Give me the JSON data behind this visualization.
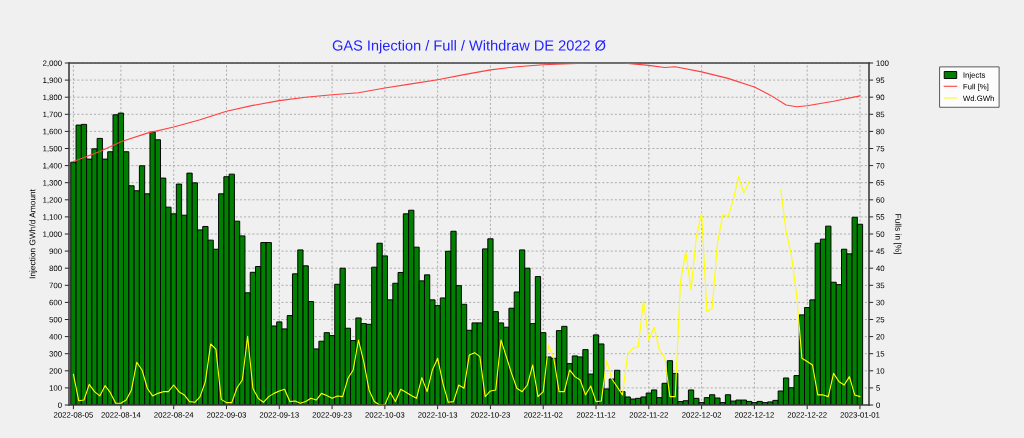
{
  "chart_data": {
    "type": "bar",
    "title": "GAS Injection / Full / Withdraw DE 2022 Ø",
    "ylabel": "Injection GWh/d Amount",
    "y2label": "Fulls in [%]",
    "x": [
      "2022-08-05",
      "2022-08-06",
      "2022-08-07",
      "2022-08-08",
      "2022-08-09",
      "2022-08-10",
      "2022-08-11",
      "2022-08-12",
      "2022-08-13",
      "2022-08-14",
      "2022-08-15",
      "2022-08-16",
      "2022-08-17",
      "2022-08-18",
      "2022-08-19",
      "2022-08-20",
      "2022-08-21",
      "2022-08-22",
      "2022-08-23",
      "2022-08-24",
      "2022-08-25",
      "2022-08-26",
      "2022-08-27",
      "2022-08-28",
      "2022-08-29",
      "2022-08-30",
      "2022-08-31",
      "2022-09-01",
      "2022-09-02",
      "2022-09-03",
      "2022-09-04",
      "2022-09-05",
      "2022-09-06",
      "2022-09-07",
      "2022-09-08",
      "2022-09-09",
      "2022-09-10",
      "2022-09-11",
      "2022-09-12",
      "2022-09-13",
      "2022-09-14",
      "2022-09-15",
      "2022-09-16",
      "2022-09-17",
      "2022-09-18",
      "2022-09-19",
      "2022-09-20",
      "2022-09-21",
      "2022-09-22",
      "2022-09-23",
      "2022-09-24",
      "2022-09-25",
      "2022-09-26",
      "2022-09-27",
      "2022-09-28",
      "2022-09-29",
      "2022-09-30",
      "2022-10-01",
      "2022-10-02",
      "2022-10-03",
      "2022-10-04",
      "2022-10-05",
      "2022-10-06",
      "2022-10-07",
      "2022-10-08",
      "2022-10-09",
      "2022-10-10",
      "2022-10-11",
      "2022-10-12",
      "2022-10-13",
      "2022-10-14",
      "2022-10-15",
      "2022-10-16",
      "2022-10-17",
      "2022-10-18",
      "2022-10-19",
      "2022-10-20",
      "2022-10-21",
      "2022-10-22",
      "2022-10-23",
      "2022-10-24",
      "2022-10-25",
      "2022-10-26",
      "2022-10-27",
      "2022-10-28",
      "2022-10-29",
      "2022-10-30",
      "2022-10-31",
      "2022-11-01",
      "2022-11-02",
      "2022-11-03",
      "2022-11-04",
      "2022-11-05",
      "2022-11-06",
      "2022-11-07",
      "2022-11-08",
      "2022-11-09",
      "2022-11-10",
      "2022-11-11",
      "2022-11-12",
      "2022-11-13",
      "2022-11-14",
      "2022-11-15",
      "2022-11-16",
      "2022-11-17",
      "2022-11-18",
      "2022-11-19",
      "2022-11-20",
      "2022-11-21",
      "2022-11-22",
      "2022-11-23",
      "2022-11-24",
      "2022-11-25",
      "2022-11-26",
      "2022-11-27",
      "2022-11-28",
      "2022-11-29",
      "2022-11-30",
      "2022-12-01",
      "2022-12-02",
      "2022-12-03",
      "2022-12-04",
      "2022-12-05",
      "2022-12-06",
      "2022-12-07",
      "2022-12-08",
      "2022-12-09",
      "2022-12-10",
      "2022-12-11",
      "2022-12-12",
      "2022-12-13",
      "2022-12-14",
      "2022-12-15",
      "2022-12-16",
      "2022-12-17",
      "2022-12-18",
      "2022-12-19",
      "2022-12-20",
      "2022-12-21",
      "2022-12-22",
      "2022-12-23",
      "2022-12-24",
      "2022-12-25",
      "2022-12-26",
      "2022-12-27",
      "2022-12-28",
      "2022-12-29",
      "2022-12-30",
      "2022-12-31",
      "2023-01-01"
    ],
    "series": [
      {
        "name": "Injects",
        "color": "#008000",
        "values": [
          1420,
          1637,
          1641,
          1438,
          1498,
          1559,
          1438,
          1481,
          1697,
          1707,
          1481,
          1282,
          1253,
          1399,
          1235,
          1596,
          1551,
          1327,
          1157,
          1118,
          1292,
          1110,
          1356,
          1299,
          1024,
          1044,
          964,
          911,
          1235,
          1335,
          1350,
          1075,
          989,
          656,
          776,
          810,
          950,
          950,
          462,
          486,
          445,
          523,
          767,
          907,
          814,
          605,
          328,
          373,
          423,
          406,
          706,
          800,
          449,
          377,
          509,
          476,
          472,
          806,
          946,
          872,
          615,
          712,
          775,
          1118,
          1139,
          923,
          726,
          761,
          615,
          581,
          626,
          899,
          1016,
          698,
          589,
          437,
          480,
          480,
          913,
          972,
          546,
          480,
          455,
          566,
          661,
          907,
          800,
          476,
          751,
          423,
          281,
          273,
          435,
          460,
          242,
          287,
          281,
          324,
          181,
          410,
          357,
          94,
          152,
          203,
          78,
          47,
          35,
          39,
          47,
          70,
          88,
          43,
          127,
          259,
          185,
          20,
          25,
          88,
          39,
          14,
          43,
          60,
          41,
          14,
          60,
          23,
          29,
          29,
          21,
          14,
          21,
          14,
          18,
          27,
          82,
          158,
          101,
          172,
          527,
          570,
          615,
          946,
          970,
          1046,
          718,
          704,
          911,
          884,
          1098,
          1057
        ]
      },
      {
        "name": "Full [%]",
        "type": "line",
        "axis": "y2",
        "color": "#ff4040",
        "x": [
          "2022-08-05",
          "2022-08-10",
          "2022-08-14",
          "2022-08-19",
          "2022-08-24",
          "2022-08-29",
          "2022-09-03",
          "2022-09-08",
          "2022-09-13",
          "2022-09-18",
          "2022-09-23",
          "2022-09-28",
          "2022-10-03",
          "2022-10-08",
          "2022-10-13",
          "2022-10-18",
          "2022-10-23",
          "2022-10-28",
          "2022-11-02",
          "2022-11-07",
          "2022-11-12",
          "2022-11-17",
          "2022-11-22",
          "2022-11-25",
          "2022-11-27",
          "2022-12-02",
          "2022-12-07",
          "2022-12-12",
          "2022-12-15",
          "2022-12-18",
          "2022-12-20",
          "2022-12-22",
          "2022-12-27",
          "2023-01-01"
        ],
        "values": [
          71.2,
          74.1,
          77.0,
          79.5,
          81.3,
          83.4,
          85.9,
          87.6,
          89.0,
          90.0,
          90.7,
          91.3,
          92.7,
          93.9,
          95.1,
          96.6,
          98.0,
          98.9,
          99.5,
          99.8,
          100,
          100,
          99.3,
          98.7,
          98.9,
          97.4,
          95.5,
          93.0,
          90.6,
          87.7,
          87.2,
          87.5,
          88.8,
          90.4
        ]
      },
      {
        "name": "Wd.GWh",
        "type": "line",
        "color": "#ffff00",
        "values": [
          180,
          25,
          29,
          121,
          78,
          53,
          113,
          72,
          10,
          10,
          29,
          88,
          250,
          205,
          98,
          53,
          68,
          78,
          78,
          117,
          78,
          59,
          20,
          16,
          49,
          137,
          357,
          326,
          33,
          14,
          14,
          101,
          146,
          402,
          98,
          39,
          16,
          49,
          68,
          82,
          92,
          20,
          23,
          10,
          20,
          39,
          29,
          68,
          55,
          39,
          53,
          49,
          156,
          205,
          380,
          254,
          88,
          20,
          0,
          0,
          74,
          20,
          92,
          74,
          55,
          39,
          160,
          78,
          205,
          273,
          127,
          16,
          20,
          117,
          98,
          293,
          306,
          283,
          49,
          82,
          88,
          380,
          283,
          185,
          98,
          78,
          117,
          234,
          49,
          78,
          351,
          273,
          78,
          78,
          205,
          166,
          146,
          59,
          111,
          20,
          23,
          259,
          152,
          107,
          59,
          297,
          332,
          341,
          611,
          380,
          455,
          322,
          278,
          49,
          49,
          722,
          897,
          673,
          985,
          1122,
          546,
          566,
          946,
          1112,
          1102,
          1200,
          1336,
          1239,
          1307,
          null,
          null,
          null,
          null,
          null,
          1258,
          1015,
          878,
          644,
          273,
          254,
          234,
          59,
          59,
          49,
          185,
          137,
          117,
          166,
          59,
          49
        ]
      }
    ],
    "xlim": [
      "2022-08-04T04:00",
      "2023-01-02T17:00"
    ],
    "xticks": [
      "2022-08-05",
      "2022-08-14",
      "2022-08-24",
      "2022-09-03",
      "2022-09-13",
      "2022-09-23",
      "2022-10-03",
      "2022-10-13",
      "2022-10-23",
      "2022-11-02",
      "2022-11-12",
      "2022-11-22",
      "2022-12-02",
      "2022-12-12",
      "2022-12-22",
      "2023-01-01"
    ],
    "ylim": [
      0,
      2000
    ],
    "yticks": [
      0,
      100,
      200,
      300,
      400,
      500,
      600,
      700,
      800,
      900,
      {
        "value": 1000,
        "label": "1,000"
      },
      {
        "value": 1100,
        "label": "1,100"
      },
      {
        "value": 1200,
        "label": "1,200"
      },
      {
        "value": 1300,
        "label": "1,300"
      },
      {
        "value": 1400,
        "label": "1,400"
      },
      {
        "value": 1500,
        "label": "1,500"
      },
      {
        "value": 1600,
        "label": "1,600"
      },
      {
        "value": 1700,
        "label": "1,700"
      },
      {
        "value": 1800,
        "label": "1,800"
      },
      {
        "value": 1900,
        "label": "1,900"
      },
      {
        "value": 2000,
        "label": "2,000"
      }
    ],
    "y2lim": [
      0,
      100
    ],
    "y2ticks": [
      0,
      5,
      10,
      15,
      20,
      25,
      30,
      35,
      40,
      45,
      50,
      55,
      60,
      65,
      70,
      75,
      80,
      85,
      90,
      95,
      100
    ],
    "grid": true,
    "legend": "top right"
  }
}
